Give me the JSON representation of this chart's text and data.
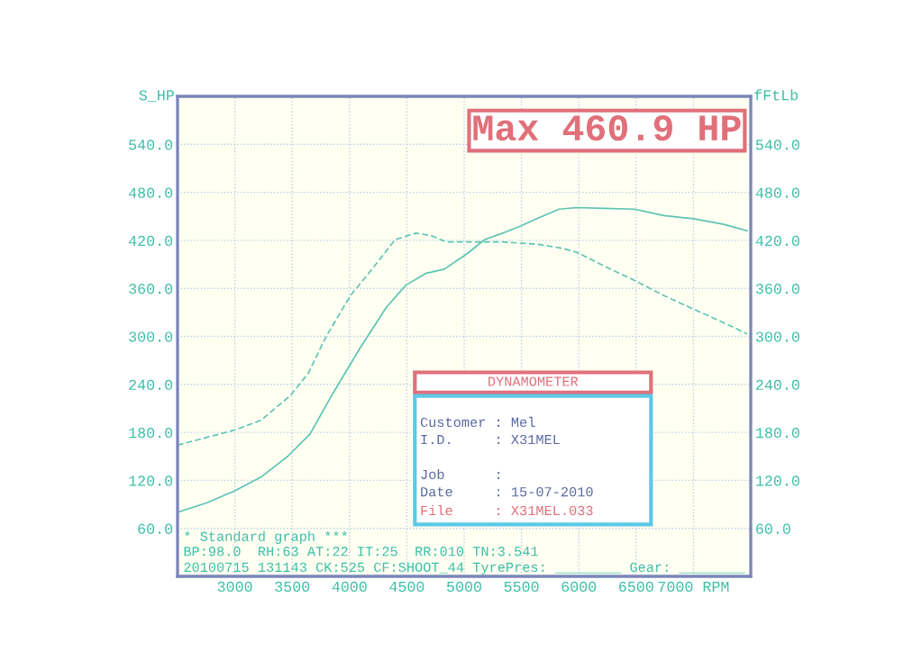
{
  "chart_data": {
    "type": "line",
    "ylabel": "S_HP",
    "y2label": "fFtLb",
    "xlim": [
      2500,
      7500
    ],
    "xticks": [
      3000,
      3500,
      4000,
      4500,
      5000,
      5500,
      6000,
      6500,
      {
        "value": 7000,
        "label": "7000 RPM"
      }
    ],
    "ylim": [
      0,
      600
    ],
    "yticks": [
      {
        "value": 60,
        "label": "60.0"
      },
      {
        "value": 120,
        "label": "120.0"
      },
      {
        "value": 180,
        "label": "180.0"
      },
      {
        "value": 240,
        "label": "240.0"
      },
      {
        "value": 300,
        "label": "300.0"
      },
      {
        "value": 360,
        "label": "360.0"
      },
      {
        "value": 420,
        "label": "420.0"
      },
      {
        "value": 480,
        "label": "480.0"
      },
      {
        "value": 540,
        "label": "540.0"
      }
    ],
    "y2lim": [
      0,
      600
    ],
    "y2ticks": [
      {
        "value": 60,
        "label": "60.0"
      },
      {
        "value": 120,
        "label": "120.0"
      },
      {
        "value": 180,
        "label": "180.0"
      },
      {
        "value": 240,
        "label": "240.0"
      },
      {
        "value": 300,
        "label": "300.0"
      },
      {
        "value": 360,
        "label": "360.0"
      },
      {
        "value": 420,
        "label": "420.0"
      },
      {
        "value": 480,
        "label": "480.0"
      },
      {
        "value": 540,
        "label": "540.0"
      }
    ],
    "grid": true,
    "series": [
      {
        "color": "#5cc4b4",
        "line_style": "solid",
        "x": [
          2500,
          2758,
          3000,
          3227,
          3461,
          3656,
          3852,
          4086,
          4320,
          4492,
          4672,
          4828,
          4867,
          5023,
          5180,
          5336,
          5492,
          5648,
          5828,
          5984,
          6219,
          6484,
          6742,
          7000,
          7266,
          7469
        ],
        "values": [
          80,
          92,
          107,
          124,
          150,
          178,
          228,
          284,
          336,
          364,
          379,
          384,
          388,
          403,
          421,
          429,
          438,
          448,
          459,
          461,
          460,
          459,
          451,
          447,
          440,
          432
        ]
      },
      {
        "color": "#5cc4b4",
        "line_style": "dashed",
        "axis": "y2",
        "x": [
          2500,
          3000,
          3227,
          3484,
          3641,
          3797,
          4008,
          4219,
          4398,
          4578,
          4711,
          4844,
          5023,
          5336,
          5648,
          5859,
          5984,
          6219,
          6484,
          6742,
          7000,
          7266,
          7469
        ],
        "values": [
          164,
          183,
          195,
          226,
          254,
          300,
          351,
          388,
          421,
          429,
          426,
          418,
          418,
          418,
          415,
          410,
          405,
          388,
          370,
          351,
          334,
          317,
          303
        ]
      }
    ],
    "annotations": [
      "Max 460.9 HP",
      "DYNAMOMETER",
      "Customer : Mel",
      "I.D.     : X31MEL",
      "Job      :",
      "Date     : 15-07-2010",
      "File     : X31MEL.033",
      "* Standard graph ***",
      "BP:98.0  RH:63 AT:22 IT:25  RR:010 TN:3.541",
      "20100715 131143 CK:525 CF:SHOOT_44 TyrePres: ________ Gear: ________"
    ]
  }
}
